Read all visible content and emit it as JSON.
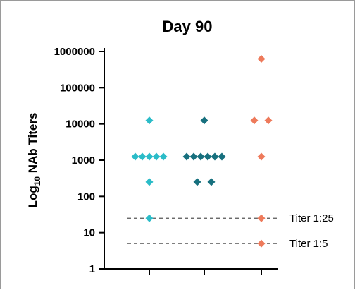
{
  "chart_data": {
    "type": "scatter",
    "title": "Day 90",
    "ylabel": {
      "prefix": "Log",
      "subscript": "10",
      "suffix": " NAb Titers"
    },
    "yscale": "log",
    "ylim": [
      1,
      1000000
    ],
    "yticks": [
      1,
      10,
      100,
      1000,
      10000,
      100000,
      1000000
    ],
    "ytick_labels": [
      "1",
      "10",
      "100",
      "1000",
      "10000",
      "100000",
      "1000000"
    ],
    "groups": [
      {
        "color": "#2bbcc8",
        "values": [
          12500,
          1250,
          1250,
          1250,
          1250,
          1250,
          250,
          25
        ],
        "offsets": [
          0,
          -2,
          -1,
          0,
          1,
          2,
          0,
          0
        ]
      },
      {
        "color": "#17707e",
        "values": [
          12500,
          1250,
          1250,
          1250,
          1250,
          1250,
          1250,
          250,
          250
        ],
        "offsets": [
          0,
          -2.5,
          -1.5,
          -0.5,
          0.5,
          1.5,
          2.5,
          -1,
          1
        ]
      },
      {
        "color": "#ee7a5b",
        "values": [
          625000,
          12500,
          12500,
          1250,
          25,
          5
        ],
        "offsets": [
          0,
          -1,
          1,
          0,
          0,
          0
        ]
      }
    ],
    "reference_lines": [
      {
        "value": 25,
        "label": "Titer 1:25"
      },
      {
        "value": 5,
        "label": "Titer 1:5"
      }
    ],
    "grid": false,
    "legend": "none"
  }
}
